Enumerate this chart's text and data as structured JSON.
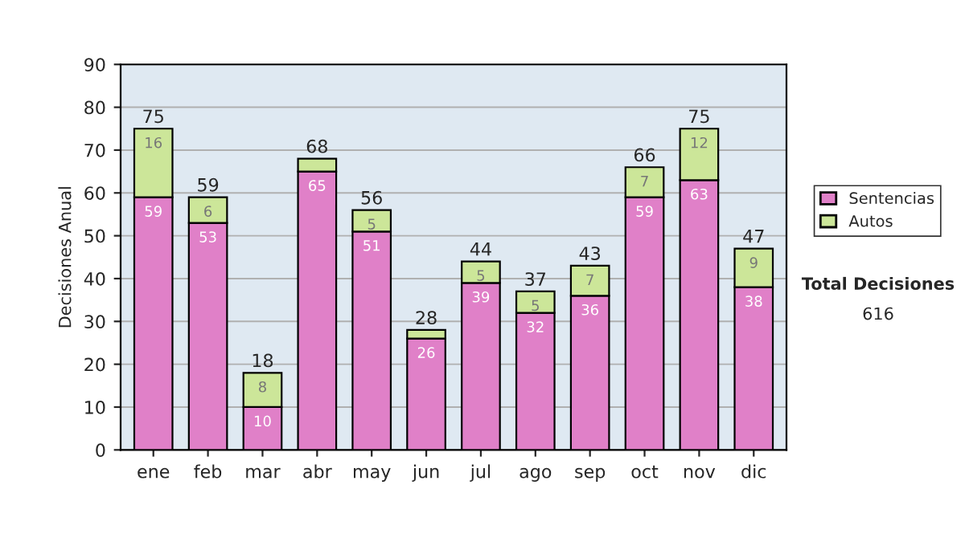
{
  "chart_data": {
    "type": "bar",
    "stacked": true,
    "ylabel": "Decisiones Anual",
    "categories": [
      "ene",
      "feb",
      "mar",
      "abr",
      "may",
      "jun",
      "jul",
      "ago",
      "sep",
      "oct",
      "nov",
      "dic"
    ],
    "series": [
      {
        "name": "Sentencias",
        "color": "#e080c8",
        "values": [
          59,
          53,
          10,
          65,
          51,
          26,
          39,
          32,
          36,
          59,
          63,
          38
        ],
        "value_labels": [
          "59",
          "53",
          "10",
          "65",
          "51",
          "26",
          "39",
          "32",
          "36",
          "59",
          "63",
          "38"
        ]
      },
      {
        "name": "Autos",
        "color": "#cce699",
        "values": [
          16,
          6,
          8,
          3,
          5,
          2,
          5,
          5,
          7,
          7,
          12,
          9
        ],
        "value_labels": [
          "16",
          "6",
          "8",
          null,
          "5",
          null,
          "5",
          "5",
          "7",
          "7",
          "12",
          "9"
        ]
      }
    ],
    "totals": [
      "75",
      "59",
      "18",
      "68",
      "56",
      "28",
      "44",
      "37",
      "43",
      "66",
      "75",
      "47"
    ],
    "ylim": [
      0,
      90
    ],
    "yticks": [
      0,
      10,
      20,
      30,
      40,
      50,
      60,
      70,
      80,
      90
    ],
    "grid": "y",
    "legend": "right",
    "annotations": [
      "Total Decisiones",
      "616"
    ]
  }
}
